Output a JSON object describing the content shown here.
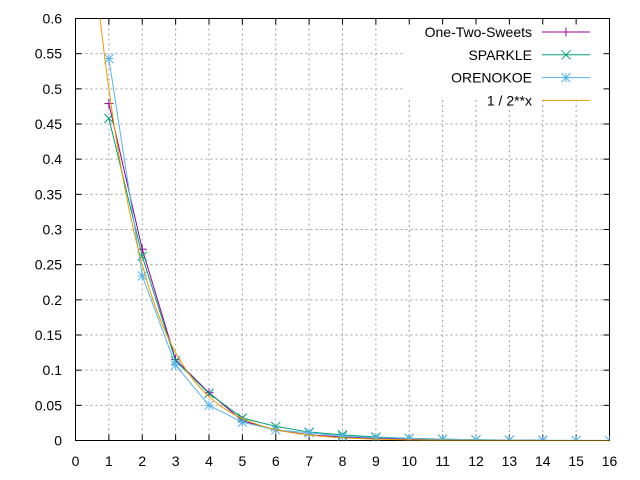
{
  "chart_data": {
    "type": "line",
    "title": "",
    "xlabel": "",
    "ylabel": "",
    "xlim": [
      0,
      16
    ],
    "ylim": [
      0,
      0.6
    ],
    "grid": true,
    "legend_position": "top-right",
    "x_ticks": [
      "0",
      "1",
      "2",
      "3",
      "4",
      "5",
      "6",
      "7",
      "8",
      "9",
      "10",
      "11",
      "12",
      "13",
      "14",
      "15",
      "16"
    ],
    "y_ticks": [
      "0",
      "0.05",
      "0.1",
      "0.15",
      "0.2",
      "0.25",
      "0.3",
      "0.35",
      "0.4",
      "0.45",
      "0.5",
      "0.55",
      "0.6"
    ],
    "series": [
      {
        "name": "One-Two-Sweets",
        "color": "#94009f",
        "marker": "plus",
        "x": [
          1,
          2,
          3,
          4,
          5,
          6,
          7,
          8,
          9,
          10,
          11,
          12,
          13,
          14
        ],
        "y": [
          0.479,
          0.272,
          0.115,
          0.068,
          0.028,
          0.015,
          0.008,
          0.005,
          0.003,
          0.002,
          0.001,
          0.0008,
          0.0005,
          0.0003
        ]
      },
      {
        "name": "SPARKLE",
        "color": "#009e73",
        "marker": "cross",
        "x": [
          1,
          2,
          3,
          4,
          5,
          6,
          7,
          8,
          9,
          10,
          11,
          12,
          13,
          14
        ],
        "y": [
          0.458,
          0.262,
          0.113,
          0.067,
          0.032,
          0.02,
          0.012,
          0.008,
          0.005,
          0.003,
          0.002,
          0.001,
          0.0006,
          0.0003
        ]
      },
      {
        "name": "ORENOKOE",
        "color": "#56b4e9",
        "marker": "star",
        "x": [
          1,
          2,
          3,
          4,
          5,
          6,
          7,
          8,
          9,
          10,
          11,
          12,
          13,
          14,
          15,
          16
        ],
        "y": [
          0.543,
          0.234,
          0.107,
          0.05,
          0.026,
          0.015,
          0.011,
          0.006,
          0.004,
          0.003,
          0.002,
          0.001,
          0.0007,
          0.0004,
          0.0002,
          0.0001
        ]
      },
      {
        "name": "1 / 2**x",
        "color": "#e69f00",
        "marker": "none",
        "function": "pow2inv"
      }
    ]
  }
}
